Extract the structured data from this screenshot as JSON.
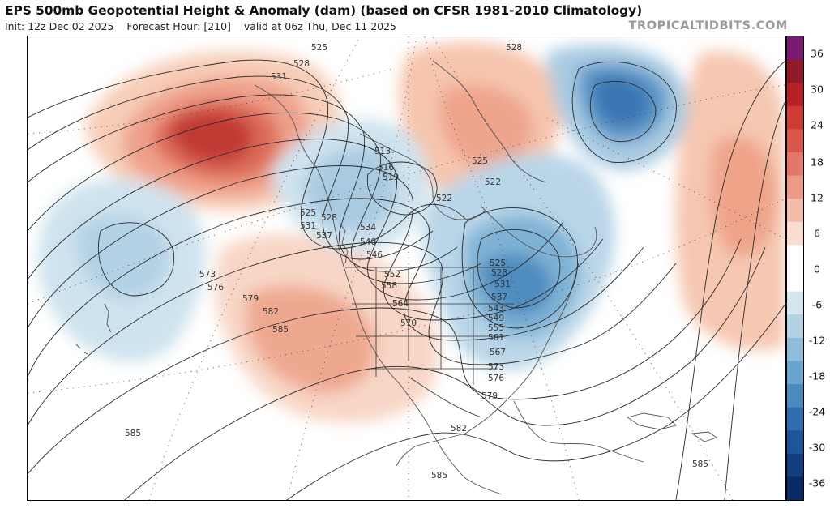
{
  "header": {
    "title": "EPS 500mb Geopotential Height & Anomaly (dam) (based on CFSR 1981-2010 Climatology)",
    "init": "Init: 12z Dec 02 2025",
    "forecast_hour": "Forecast Hour: [210]",
    "valid": "valid at 06z Thu, Dec 11 2025",
    "watermark": "TROPICALTIDBITS.COM"
  },
  "colorbar": {
    "ticks": [
      "36",
      "30",
      "24",
      "18",
      "12",
      "6",
      "0",
      "-6",
      "-12",
      "-18",
      "-24",
      "-30",
      "-36"
    ],
    "colors": [
      "#7a1a70",
      "#8e1a2a",
      "#b42127",
      "#cd3b35",
      "#d8574a",
      "#e3786a",
      "#eb9a87",
      "#f3bea9",
      "#f9ddcf",
      "#ffffff",
      "#ffffff",
      "#d6e6ef",
      "#b3d2e4",
      "#8fbdd9",
      "#6aa5cd",
      "#4a8bbf",
      "#2f6fad",
      "#1e5598",
      "#123e80",
      "#0a2a66"
    ]
  },
  "contour_labels": [
    {
      "text": "525",
      "id": "alaska-525"
    },
    {
      "text": "528",
      "id": "alaska-528"
    },
    {
      "text": "531",
      "id": "alaska-531"
    },
    {
      "text": "513",
      "id": "canada-513"
    },
    {
      "text": "516",
      "id": "canada-516"
    },
    {
      "text": "519",
      "id": "canada-519"
    },
    {
      "text": "525",
      "id": "coast-525"
    },
    {
      "text": "528",
      "id": "coast-528"
    },
    {
      "text": "531",
      "id": "coast-531"
    },
    {
      "text": "537",
      "id": "coast-537"
    },
    {
      "text": "534",
      "id": "west-534"
    },
    {
      "text": "540",
      "id": "west-540"
    },
    {
      "text": "546",
      "id": "west-546"
    },
    {
      "text": "552",
      "id": "west-552"
    },
    {
      "text": "558",
      "id": "west-558"
    },
    {
      "text": "564",
      "id": "west-564"
    },
    {
      "text": "570",
      "id": "west-570"
    },
    {
      "text": "573",
      "id": "pac-573"
    },
    {
      "text": "576",
      "id": "pac-576"
    },
    {
      "text": "579",
      "id": "pac-579"
    },
    {
      "text": "582",
      "id": "pac-582"
    },
    {
      "text": "585",
      "id": "pac-585"
    },
    {
      "text": "585",
      "id": "sw-585"
    },
    {
      "text": "528",
      "id": "greenland-528"
    },
    {
      "text": "525",
      "id": "hudson-525"
    },
    {
      "text": "522",
      "id": "hudson-522"
    },
    {
      "text": "522",
      "id": "canada-522"
    },
    {
      "text": "525",
      "id": "east-525"
    },
    {
      "text": "528",
      "id": "east-528"
    },
    {
      "text": "531",
      "id": "east-531"
    },
    {
      "text": "537",
      "id": "east-537"
    },
    {
      "text": "543",
      "id": "east-543"
    },
    {
      "text": "549",
      "id": "east-549"
    },
    {
      "text": "555",
      "id": "east-555"
    },
    {
      "text": "561",
      "id": "east-561"
    },
    {
      "text": "567",
      "id": "east-567"
    },
    {
      "text": "573",
      "id": "east-573"
    },
    {
      "text": "576",
      "id": "east-576"
    },
    {
      "text": "579",
      "id": "gulf-579"
    },
    {
      "text": "582",
      "id": "gulf-582"
    },
    {
      "text": "585",
      "id": "mexico-585"
    },
    {
      "text": "585",
      "id": "carib-585"
    }
  ]
}
